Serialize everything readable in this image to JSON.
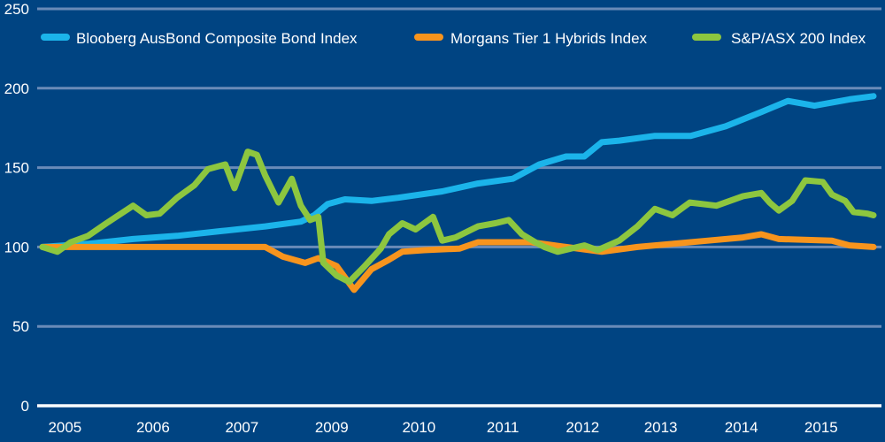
{
  "chart_data": {
    "type": "line",
    "title": "",
    "xlabel": "",
    "ylabel": "",
    "ylim": [
      0,
      250
    ],
    "yticks": [
      0,
      50,
      100,
      150,
      200,
      250
    ],
    "grid": true,
    "legend_position": "top",
    "x_domain_note": "time index 0-100 spanning the plotted period (2005 to late 2015)",
    "xlim": [
      0,
      100
    ],
    "xticks": [
      {
        "label": "2005",
        "at": 2.7
      },
      {
        "label": "2006",
        "at": 13.3
      },
      {
        "label": "2007",
        "at": 24.0
      },
      {
        "label": "2009",
        "at": 34.8
      },
      {
        "label": "2010",
        "at": 45.3
      },
      {
        "label": "2011",
        "at": 55.4
      },
      {
        "label": "2012",
        "at": 65.0
      },
      {
        "label": "2013",
        "at": 74.4
      },
      {
        "label": "2014",
        "at": 84.1
      },
      {
        "label": "2015",
        "at": 93.7
      }
    ],
    "series": [
      {
        "name": "Blooberg AusBond Composite Bond Index",
        "color": "#1bb4ea",
        "x": [
          0,
          5.5,
          10.9,
          16.2,
          21.5,
          26.8,
          31.1,
          32.7,
          34.3,
          36.4,
          39.6,
          42.8,
          48.1,
          52.4,
          56.6,
          59.8,
          63.0,
          65.2,
          67.3,
          69.4,
          73.7,
          78.0,
          82.2,
          86.5,
          89.7,
          92.9,
          97.1,
          100
        ],
        "values": [
          100,
          102,
          105,
          107,
          110,
          113,
          116,
          120,
          127,
          130,
          129,
          131,
          135,
          140,
          143,
          152,
          157,
          157,
          166,
          167,
          170,
          170,
          176,
          185,
          192,
          189,
          193,
          195
        ]
      },
      {
        "name": "Morgans Tier 1 Hybrids Index",
        "color": "#f7941d",
        "x": [
          0,
          10.9,
          21.5,
          26.8,
          28.9,
          31.6,
          33.2,
          35.4,
          37.5,
          39.6,
          41.7,
          43.3,
          45.9,
          50.2,
          52.4,
          58.8,
          63.0,
          67.3,
          71.6,
          75.8,
          80.1,
          84.3,
          86.5,
          88.6,
          95.0,
          97.1,
          100
        ],
        "values": [
          100,
          100,
          100,
          100,
          94,
          90,
          93,
          88,
          73,
          86,
          92,
          97,
          98,
          99,
          103,
          103,
          100,
          97,
          100,
          102,
          104,
          106,
          108,
          105,
          104,
          101,
          100
        ]
      },
      {
        "name": "S&P/ASX 200 Index",
        "color": "#8dc63f",
        "x": [
          0,
          1.8,
          3.4,
          5.5,
          7.7,
          10.9,
          12.5,
          14.1,
          16.2,
          18.3,
          19.9,
          22.0,
          23.1,
          24.7,
          25.8,
          26.8,
          28.4,
          30.0,
          31.1,
          32.2,
          33.2,
          33.8,
          35.4,
          36.9,
          38.6,
          40.7,
          41.7,
          43.3,
          44.9,
          47.0,
          48.1,
          49.7,
          52.4,
          54.5,
          56.1,
          57.7,
          59.3,
          60.4,
          62.0,
          65.2,
          66.8,
          69.4,
          71.6,
          73.7,
          75.8,
          77.9,
          81.1,
          84.3,
          86.5,
          87.5,
          88.6,
          90.2,
          91.8,
          93.9,
          95.0,
          96.6,
          97.6,
          99.3,
          100
        ],
        "values": [
          100,
          97,
          103,
          107,
          115,
          126,
          120,
          121,
          131,
          139,
          149,
          152,
          137,
          160,
          158,
          145,
          128,
          143,
          126,
          117,
          119,
          90,
          82,
          78,
          87,
          99,
          108,
          115,
          111,
          119,
          104,
          106,
          113,
          115,
          117,
          108,
          103,
          100,
          97,
          101,
          98,
          104,
          113,
          124,
          120,
          128,
          126,
          132,
          134,
          128,
          123,
          129,
          142,
          141,
          133,
          129,
          122,
          121,
          120
        ]
      }
    ]
  }
}
